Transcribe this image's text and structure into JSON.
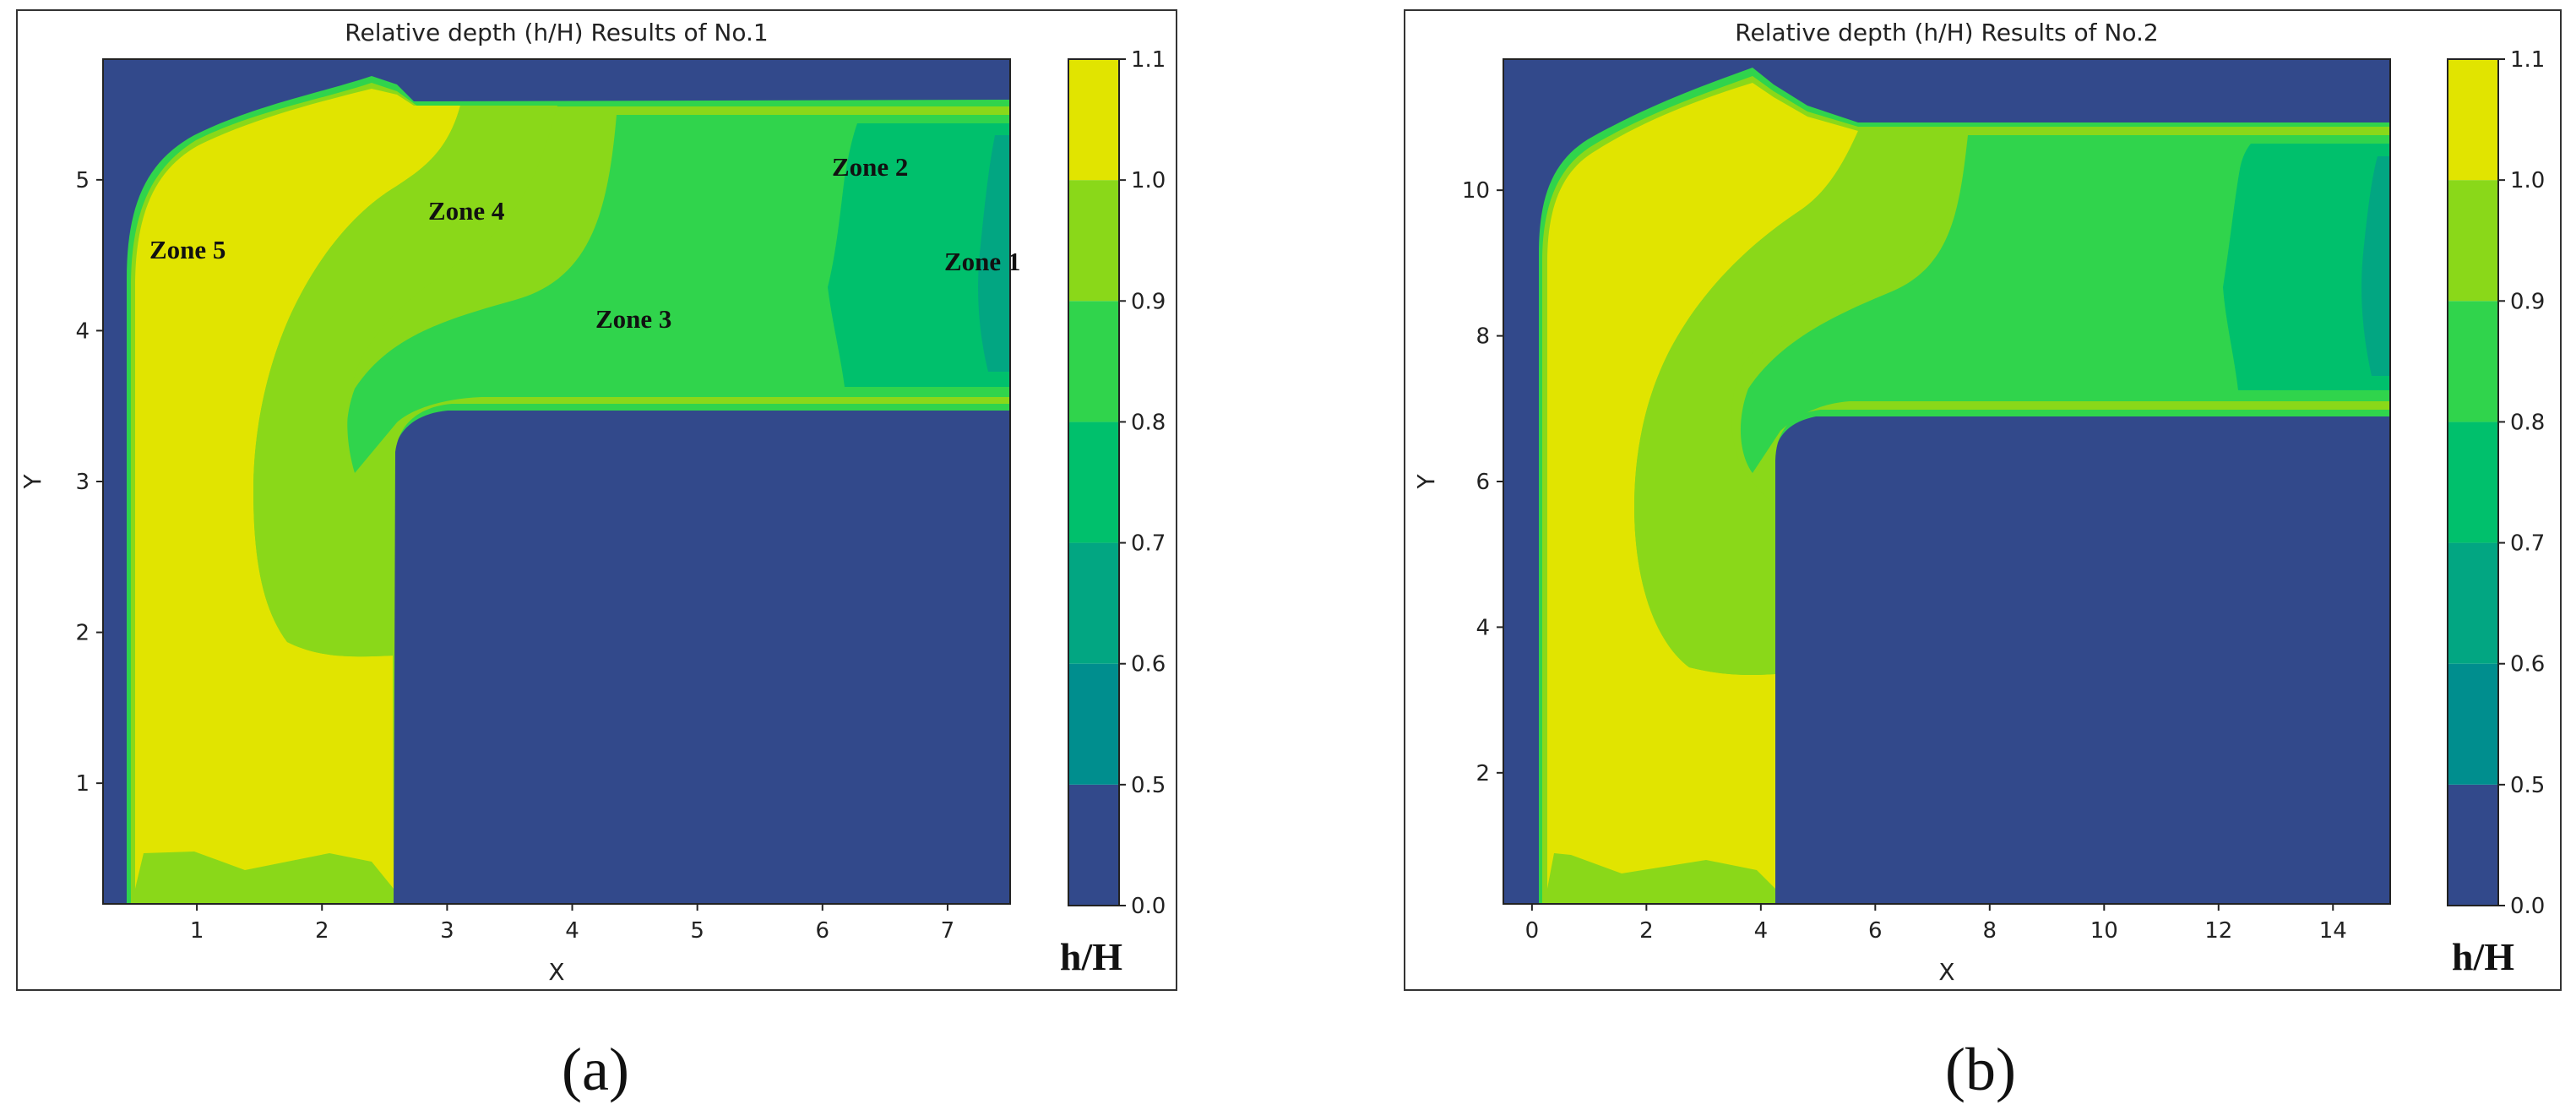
{
  "colors": {
    "c0": "#32498b",
    "c5": "#008e8e",
    "c6": "#02a682",
    "c7": "#00c06c",
    "c8": "#30d44c",
    "c9": "#8ad819",
    "c10": "#e1e400"
  },
  "chart_data": [
    {
      "type": "heatmap",
      "title": "Relative depth (h/H) Results of No.1",
      "xlabel": "X",
      "ylabel": "Y",
      "xlim": [
        0.25,
        7.5
      ],
      "ylim": [
        0.2,
        5.8
      ],
      "xticks": [
        "1",
        "2",
        "3",
        "4",
        "5",
        "6",
        "7"
      ],
      "yticks": [
        "1",
        "2",
        "3",
        "4",
        "5"
      ],
      "colorbar": {
        "label": "h/H",
        "levels": [
          0.0,
          0.5,
          0.6,
          0.7,
          0.8,
          0.9,
          1.0,
          1.1
        ],
        "ticks": [
          "0.0",
          "0.5",
          "0.6",
          "0.7",
          "0.8",
          "0.9",
          "1.0",
          "1.1"
        ]
      },
      "annotations": [
        "Zone 5",
        "Zone 4",
        "Zone 3",
        "Zone 2",
        "Zone 1"
      ],
      "panel_label": "(a)"
    },
    {
      "type": "heatmap",
      "title": "Relative depth (h/H) Results of No.2",
      "xlabel": "X",
      "ylabel": "Y",
      "xlim": [
        -0.5,
        15
      ],
      "ylim": [
        0.2,
        11.8
      ],
      "xticks": [
        "0",
        "2",
        "4",
        "6",
        "8",
        "10",
        "12",
        "14"
      ],
      "yticks": [
        "2",
        "4",
        "6",
        "8",
        "10"
      ],
      "colorbar": {
        "label": "h/H",
        "levels": [
          0.0,
          0.5,
          0.6,
          0.7,
          0.8,
          0.9,
          1.0,
          1.1
        ],
        "ticks": [
          "0.0",
          "0.5",
          "0.6",
          "0.7",
          "0.8",
          "0.9",
          "1.0",
          "1.1"
        ]
      },
      "annotations": [],
      "panel_label": "(b)"
    }
  ]
}
